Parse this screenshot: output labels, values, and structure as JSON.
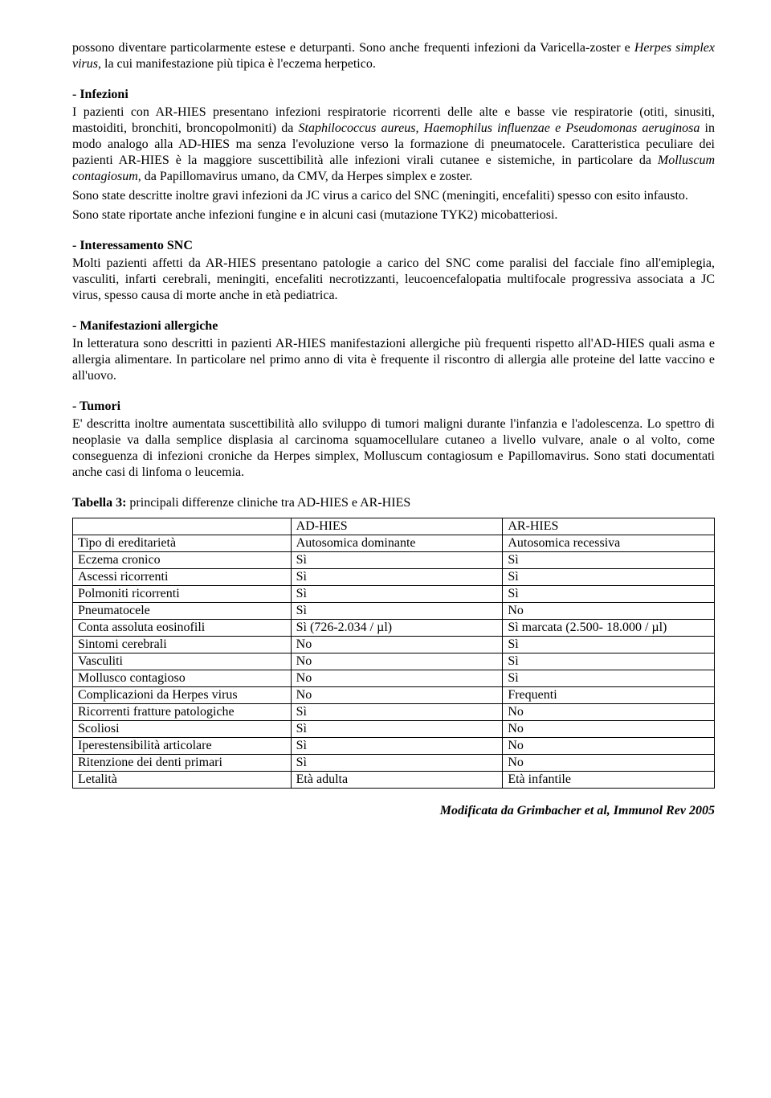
{
  "intro": {
    "p1_html": "possono diventare particolarmente estese e deturpanti. Sono anche frequenti infezioni da Varicella-zoster e <span class=\"italic\">Herpes simplex virus</span>, la cui manifestazione più tipica è l'eczema herpetico."
  },
  "infezioni": {
    "title": "- Infezioni",
    "p1_html": "I pazienti con AR-HIES presentano infezioni respiratorie ricorrenti delle alte e basse vie respiratorie (otiti, sinusiti, mastoiditi, bronchiti, broncopolmoniti) da <span class=\"italic\">Staphilococcus aureus, Haemophilus influenzae e Pseudomonas aeruginosa</span> in modo analogo alla AD-HIES ma senza l'evoluzione verso la formazione di pneumatocele. Caratteristica peculiare dei pazienti AR-HIES è la maggiore suscettibilità alle infezioni virali cutanee e sistemiche, in particolare da <span class=\"italic\">Molluscum contagiosum</span>, da Papillomavirus umano, da CMV, da Herpes simplex e zoster.",
    "p2": "Sono state descritte inoltre gravi infezioni da JC virus a carico del SNC (meningiti, encefaliti) spesso con esito infausto.",
    "p3": "Sono state riportate anche infezioni fungine e in alcuni casi (mutazione TYK2) micobatteriosi."
  },
  "snc": {
    "title": "- Interessamento SNC",
    "p1": "Molti pazienti affetti da AR-HIES presentano patologie a carico del SNC come paralisi del facciale fino all'emiplegia, vasculiti, infarti cerebrali, meningiti, encefaliti necrotizzanti, leucoencefalopatia multifocale progressiva associata a JC virus, spesso causa di morte anche in età pediatrica."
  },
  "allergiche": {
    "title": "- Manifestazioni allergiche",
    "p1": "In letteratura sono descritti in pazienti AR-HIES manifestazioni allergiche più frequenti rispetto all'AD-HIES quali asma e allergia alimentare. In particolare nel primo anno di vita è frequente il riscontro di allergia alle proteine del latte vaccino e all'uovo."
  },
  "tumori": {
    "title": "- Tumori",
    "p1": "E' descritta inoltre aumentata suscettibilità allo sviluppo di tumori maligni durante l'infanzia e l'adolescenza. Lo spettro di neoplasie va dalla semplice displasia al carcinoma squamocellulare cutaneo a livello vulvare, anale o al volto, come conseguenza di infezioni croniche da Herpes simplex, Molluscum contagiosum e Papillomavirus. Sono stati documentati anche casi di linfoma o leucemia."
  },
  "table": {
    "caption_bold": "Tabella 3:",
    "caption_rest": " principali differenze cliniche tra AD-HIES e AR-HIES",
    "columns": [
      "",
      "AD-HIES",
      "AR-HIES"
    ],
    "col_widths": [
      "34%",
      "33%",
      "33%"
    ],
    "rows": [
      [
        "Tipo di ereditarietà",
        "Autosomica dominante",
        "Autosomica recessiva"
      ],
      [
        "Eczema cronico",
        "Sì",
        "Sì"
      ],
      [
        "Ascessi ricorrenti",
        "Sì",
        "Sì"
      ],
      [
        "Polmoniti ricorrenti",
        "Sì",
        "Sì"
      ],
      [
        "Pneumatocele",
        "Sì",
        "No"
      ],
      [
        "Conta assoluta eosinofili",
        "Sì (726-2.034 / µl)",
        "Sì marcata (2.500- 18.000 / µl)"
      ],
      [
        "Sintomi cerebrali",
        "No",
        "Sì"
      ],
      [
        "Vasculiti",
        "No",
        "Sì"
      ],
      [
        "Mollusco contagioso",
        "No",
        "Sì"
      ],
      [
        "Complicazioni da Herpes virus",
        "No",
        "Frequenti"
      ],
      [
        "Ricorrenti fratture patologiche",
        "Sì",
        "No"
      ],
      [
        "Scoliosi",
        "Sì",
        "No"
      ],
      [
        "Iperestensibilità articolare",
        "Sì",
        "No"
      ],
      [
        "Ritenzione dei denti primari",
        "Sì",
        "No"
      ],
      [
        "Letalità",
        "Età adulta",
        "Età infantile"
      ]
    ]
  },
  "credit": "Modificata da Grimbacher et al, Immunol Rev 2005"
}
